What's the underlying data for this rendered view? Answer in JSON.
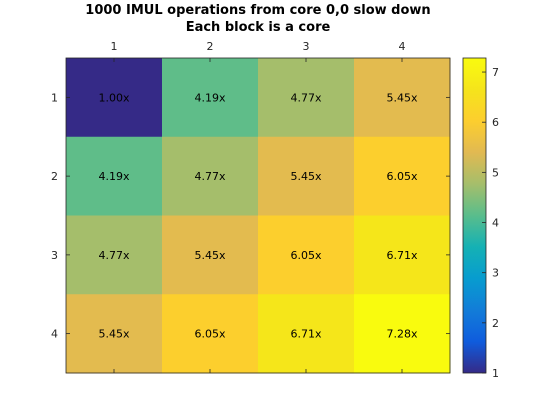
{
  "chart_data": {
    "type": "heatmap",
    "title": "1000 IMUL operations from core 0,0 slow down",
    "subtitle": "Each block is a core",
    "x_categories": [
      "1",
      "2",
      "3",
      "4"
    ],
    "y_categories": [
      "1",
      "2",
      "3",
      "4"
    ],
    "values": [
      [
        1.0,
        4.19,
        4.77,
        5.45
      ],
      [
        4.19,
        4.77,
        5.45,
        6.05
      ],
      [
        4.77,
        5.45,
        6.05,
        6.71
      ],
      [
        5.45,
        6.05,
        6.71,
        7.28
      ]
    ],
    "cell_labels": [
      [
        "1.00x",
        "4.19x",
        "4.77x",
        "5.45x"
      ],
      [
        "4.19x",
        "4.77x",
        "5.45x",
        "6.05x"
      ],
      [
        "4.77x",
        "5.45x",
        "6.05x",
        "6.71x"
      ],
      [
        "5.45x",
        "6.05x",
        "6.71x",
        "7.28x"
      ]
    ],
    "colorbar": {
      "range": [
        1,
        7.28
      ],
      "ticks": [
        "1",
        "2",
        "3",
        "4",
        "5",
        "6",
        "7"
      ],
      "colormap": "parula"
    },
    "xaxis_position": "top",
    "grid": false
  }
}
